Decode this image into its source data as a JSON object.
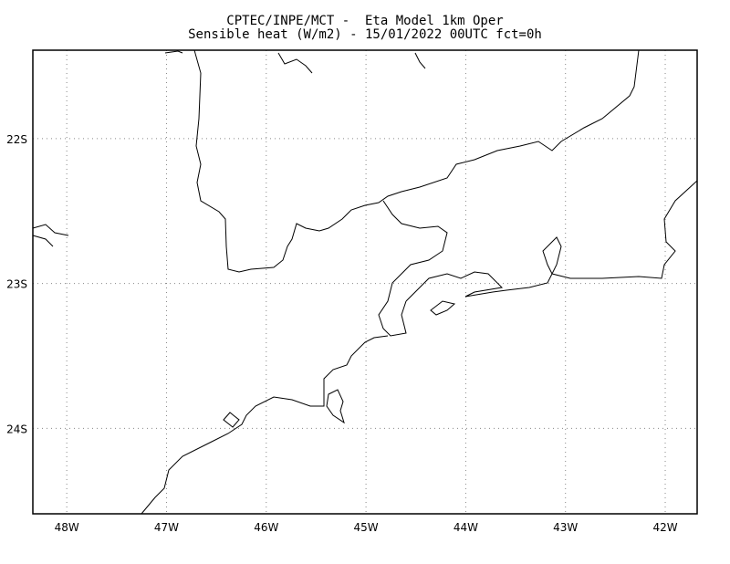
{
  "title": {
    "line1": "CPTEC/INPE/MCT -  Eta Model 1km Oper",
    "line2": "Sensible heat (W/m2) - 15/01/2022 00UTC fct=0h"
  },
  "map": {
    "lon_range": [
      -48.34,
      -41.68
    ],
    "lat_range": [
      -24.59,
      -21.39
    ],
    "grid": "dotted",
    "lon_labels": [
      "48W",
      "47W",
      "46W",
      "45W",
      "44W",
      "43W",
      "42W"
    ],
    "lat_labels": [
      "22S",
      "23S",
      "24S"
    ],
    "line_color": "#000000",
    "grid_color": "#888888"
  }
}
